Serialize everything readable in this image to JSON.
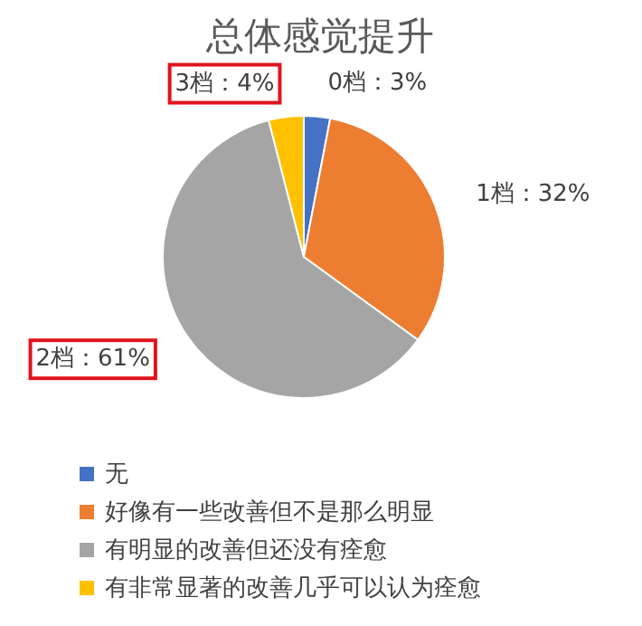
{
  "chart_data": {
    "type": "pie",
    "title": "总体感觉提升",
    "categories": [
      "无",
      "好像有一些改善但不是那么明显",
      "有明显的改善但还没有痊愈",
      "有非常显著的改善几乎可以认为痊愈"
    ],
    "values": [
      3,
      32,
      61,
      4
    ],
    "colors": [
      "#4472c4",
      "#ed7d31",
      "#a5a5a5",
      "#ffc000"
    ],
    "value_labels": [
      "0档：3%",
      "1档：32%",
      "2档：61%",
      "3档：4%"
    ],
    "legend": "bottom"
  }
}
